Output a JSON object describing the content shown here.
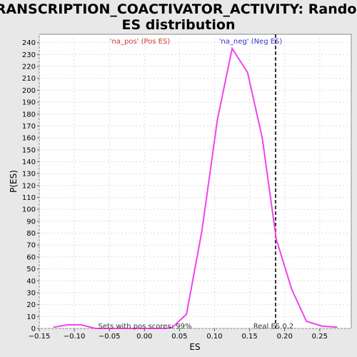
{
  "chart_data": {
    "type": "line",
    "title_line1": "TRANSCRIPTION_COACTIVATOR_ACTIVITY: Random",
    "title_line2": "ES distribution",
    "xlabel": "ES",
    "ylabel": "P(ES)",
    "xlim": [
      -0.15,
      0.295
    ],
    "ylim": [
      0,
      247
    ],
    "x_ticks": [
      -0.15,
      -0.1,
      -0.05,
      0.0,
      0.05,
      0.1,
      0.15,
      0.2,
      0.25
    ],
    "x_tick_labels": [
      "−0.15",
      "−0.10",
      "−0.05",
      "0.00",
      "0.05",
      "0.10",
      "0.15",
      "0.20",
      "0.25"
    ],
    "y_ticks": [
      0,
      10,
      20,
      30,
      40,
      50,
      60,
      70,
      80,
      90,
      100,
      110,
      120,
      130,
      140,
      150,
      160,
      170,
      180,
      190,
      200,
      210,
      220,
      230,
      240
    ],
    "grid": true,
    "series": [
      {
        "color": "#ee44ee",
        "x": [
          -0.13,
          -0.11,
          -0.09,
          -0.07,
          -0.05,
          -0.03,
          -0.01,
          0.01,
          0.03,
          0.04,
          0.06,
          0.082,
          0.104,
          0.125,
          0.147,
          0.168,
          0.188,
          0.21,
          0.231,
          0.253,
          0.275
        ],
        "y": [
          1,
          3,
          3,
          0,
          0,
          0,
          0,
          0,
          0,
          1,
          12,
          82,
          175,
          235,
          215,
          160,
          75,
          33,
          6,
          2,
          1
        ]
      }
    ],
    "pos_label": "'na_pos' (Pos ES)",
    "pos_color": "#dd3333",
    "neg_label": "'na_neg' (Neg ES)",
    "neg_color": "#3333cc",
    "real_es": {
      "value": 0.187,
      "label": "Real ES 0.2"
    },
    "pos_scores_label": "Sets with pos scores: 99%"
  }
}
